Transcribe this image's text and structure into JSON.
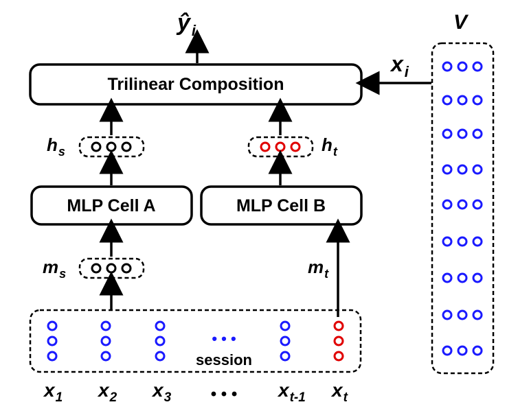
{
  "boxes": {
    "trilinear": "Trilinear Composition",
    "mlp_a": "MLP Cell A",
    "mlp_b": "MLP Cell B"
  },
  "labels": {
    "y_hat": "ŷ",
    "y_sub": "i",
    "h_s": "h",
    "h_s_sub": "s",
    "h_t": "h",
    "h_t_sub": "t",
    "m_s": "m",
    "m_s_sub": "s",
    "m_t": "m",
    "m_t_sub": "t",
    "x_i": "x",
    "x_i_sub": "i",
    "V": "V",
    "session": "session",
    "session_ellipsis": "• • •",
    "bottom_ellipsis": "• • •"
  },
  "inputs": [
    {
      "base": "x",
      "sub": "1"
    },
    {
      "base": "x",
      "sub": "2"
    },
    {
      "base": "x",
      "sub": "3"
    },
    {
      "base": "x",
      "sub": "t-1"
    },
    {
      "base": "x",
      "sub": "t"
    }
  ],
  "colors": {
    "item": "#1a1aff",
    "current": "#e00000",
    "hidden": "#000000"
  }
}
